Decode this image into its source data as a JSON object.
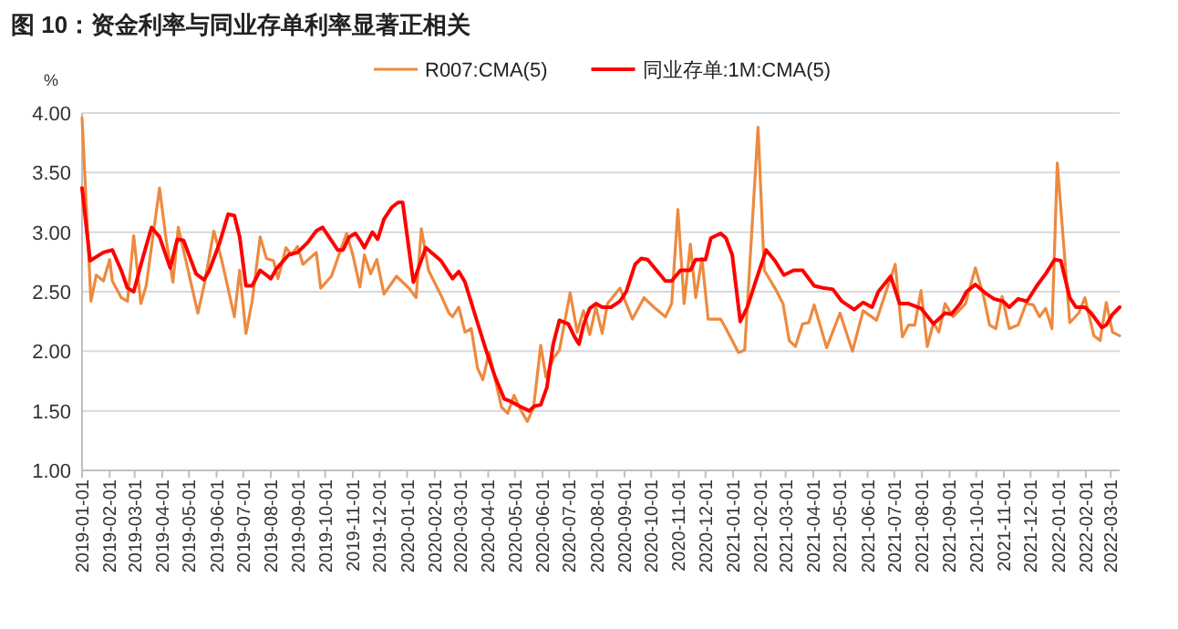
{
  "chart_data": {
    "type": "line",
    "title": "图 10：资金利率与同业存单利率显著正相关",
    "ylabel": "%",
    "xlim": [
      "2019-01-01",
      "2022-03-11"
    ],
    "xticks": [
      "2019-01-01",
      "2019-02-01",
      "2019-03-01",
      "2019-04-01",
      "2019-05-01",
      "2019-06-01",
      "2019-07-01",
      "2019-08-01",
      "2019-09-01",
      "2019-10-01",
      "2019-11-01",
      "2019-12-01",
      "2020-01-01",
      "2020-02-01",
      "2020-03-01",
      "2020-04-01",
      "2020-05-01",
      "2020-06-01",
      "2020-07-01",
      "2020-08-01",
      "2020-09-01",
      "2020-10-01",
      "2020-11-01",
      "2020-12-01",
      "2021-01-01",
      "2021-02-01",
      "2021-03-01",
      "2021-04-01",
      "2021-05-01",
      "2021-06-01",
      "2021-07-01",
      "2021-08-01",
      "2021-09-01",
      "2021-10-01",
      "2021-11-01",
      "2021-12-01",
      "2022-01-01",
      "2022-02-01",
      "2022-03-01"
    ],
    "ylim": [
      1,
      4
    ],
    "yticks": [
      {
        "value": 1,
        "label": "1.00"
      },
      {
        "value": 1.5,
        "label": "1.50"
      },
      {
        "value": 2,
        "label": "2.00"
      },
      {
        "value": 2.5,
        "label": "2.50"
      },
      {
        "value": 3,
        "label": "3.00"
      },
      {
        "value": 3.5,
        "label": "3.50"
      },
      {
        "value": 4,
        "label": "4.00"
      }
    ],
    "grid": "y",
    "legend": "top",
    "series": [
      {
        "name": "R007:CMA(5)",
        "color": "#ed8a3f",
        "x": [
          "2019-01-01",
          "2019-01-11",
          "2019-01-17",
          "2019-01-25",
          "2019-02-01",
          "2019-02-04",
          "2019-02-14",
          "2019-02-21",
          "2019-02-28",
          "2019-03-08",
          "2019-03-14",
          "2019-03-29",
          "2019-04-05",
          "2019-04-13",
          "2019-04-19",
          "2019-04-27",
          "2019-05-11",
          "2019-05-18",
          "2019-05-29",
          "2019-06-07",
          "2019-06-21",
          "2019-06-27",
          "2019-07-04",
          "2019-07-11",
          "2019-07-20",
          "2019-07-27",
          "2019-08-04",
          "2019-08-09",
          "2019-08-18",
          "2019-08-24",
          "2019-08-31",
          "2019-09-06",
          "2019-09-21",
          "2019-09-26",
          "2019-10-08",
          "2019-10-15",
          "2019-10-25",
          "2019-11-01",
          "2019-11-09",
          "2019-11-14",
          "2019-11-21",
          "2019-11-28",
          "2019-12-06",
          "2019-12-20",
          "2020-01-03",
          "2020-01-11",
          "2020-01-17",
          "2020-01-25",
          "2020-02-08",
          "2020-02-17",
          "2020-02-21",
          "2020-02-28",
          "2020-03-06",
          "2020-03-13",
          "2020-03-20",
          "2020-03-26",
          "2020-04-02",
          "2020-04-16",
          "2020-04-23",
          "2020-04-30",
          "2020-05-08",
          "2020-05-15",
          "2020-05-22",
          "2020-05-30",
          "2020-06-05",
          "2020-06-13",
          "2020-06-20",
          "2020-07-02",
          "2020-07-10",
          "2020-07-17",
          "2020-07-24",
          "2020-07-31",
          "2020-08-07",
          "2020-08-13",
          "2020-08-27",
          "2020-09-10",
          "2020-09-23",
          "2020-10-04",
          "2020-10-17",
          "2020-10-24",
          "2020-10-31",
          "2020-11-07",
          "2020-11-14",
          "2020-11-20",
          "2020-11-27",
          "2020-12-04",
          "2020-12-18",
          "2020-12-24",
          "2021-01-07",
          "2021-01-14",
          "2021-01-29",
          "2021-02-05",
          "2021-02-17",
          "2021-02-26",
          "2021-03-05",
          "2021-03-12",
          "2021-03-20",
          "2021-03-27",
          "2021-04-02",
          "2021-04-16",
          "2021-05-01",
          "2021-05-15",
          "2021-05-27",
          "2021-06-11",
          "2021-07-02",
          "2021-07-10",
          "2021-07-17",
          "2021-07-24",
          "2021-07-31",
          "2021-08-07",
          "2021-08-14",
          "2021-08-20",
          "2021-08-27",
          "2021-09-05",
          "2021-09-19",
          "2021-09-30",
          "2021-10-09",
          "2021-10-16",
          "2021-10-23",
          "2021-10-30",
          "2021-11-07",
          "2021-11-17",
          "2021-11-26",
          "2021-12-04",
          "2021-12-11",
          "2021-12-18",
          "2021-12-25",
          "2021-12-31",
          "2022-01-14",
          "2022-01-24",
          "2022-01-31",
          "2022-02-10",
          "2022-02-17",
          "2022-02-24",
          "2022-03-03",
          "2022-03-11"
        ],
        "values": [
          3.96,
          2.42,
          2.64,
          2.59,
          2.77,
          2.59,
          2.45,
          2.42,
          2.97,
          2.4,
          2.55,
          3.37,
          2.96,
          2.58,
          3.04,
          2.78,
          2.32,
          2.55,
          3.01,
          2.76,
          2.29,
          2.68,
          2.15,
          2.42,
          2.96,
          2.78,
          2.76,
          2.61,
          2.87,
          2.81,
          2.88,
          2.73,
          2.83,
          2.53,
          2.63,
          2.78,
          2.99,
          2.81,
          2.54,
          2.81,
          2.65,
          2.77,
          2.48,
          2.63,
          2.53,
          2.45,
          3.03,
          2.68,
          2.47,
          2.32,
          2.29,
          2.37,
          2.16,
          2.19,
          1.86,
          1.76,
          1.99,
          1.53,
          1.48,
          1.63,
          1.5,
          1.41,
          1.53,
          2.05,
          1.78,
          1.94,
          2.01,
          2.49,
          2.16,
          2.34,
          2.14,
          2.37,
          2.15,
          2.4,
          2.53,
          2.27,
          2.45,
          2.37,
          2.29,
          2.4,
          3.19,
          2.4,
          2.9,
          2.45,
          2.78,
          2.27,
          2.27,
          2.19,
          1.99,
          2.01,
          3.88,
          2.68,
          2.53,
          2.4,
          2.09,
          2.04,
          2.23,
          2.24,
          2.39,
          2.03,
          2.32,
          2.0,
          2.34,
          2.26,
          2.73,
          2.12,
          2.22,
          2.22,
          2.51,
          2.04,
          2.24,
          2.16,
          2.4,
          2.29,
          2.4,
          2.7,
          2.47,
          2.22,
          2.19,
          2.46,
          2.19,
          2.22,
          2.4,
          2.39,
          2.29,
          2.36,
          2.19,
          3.58,
          2.24,
          2.32,
          2.45,
          2.13,
          2.09,
          2.41,
          2.16,
          2.13
        ]
      },
      {
        "name": "同业存单:1M:CMA(5)",
        "color": "#ff0000",
        "x": [
          "2019-01-01",
          "2019-01-10",
          "2019-01-25",
          "2019-02-04",
          "2019-02-14",
          "2019-02-21",
          "2019-02-28",
          "2019-03-10",
          "2019-03-20",
          "2019-03-29",
          "2019-04-10",
          "2019-04-18",
          "2019-04-25",
          "2019-05-09",
          "2019-05-18",
          "2019-05-24",
          "2019-06-04",
          "2019-06-14",
          "2019-06-21",
          "2019-06-27",
          "2019-07-04",
          "2019-07-11",
          "2019-07-20",
          "2019-08-01",
          "2019-08-07",
          "2019-08-21",
          "2019-08-31",
          "2019-09-11",
          "2019-09-21",
          "2019-09-28",
          "2019-10-08",
          "2019-10-15",
          "2019-10-21",
          "2019-10-28",
          "2019-11-04",
          "2019-11-11",
          "2019-11-14",
          "2019-11-23",
          "2019-11-29",
          "2019-12-06",
          "2019-12-15",
          "2019-12-22",
          "2019-12-27",
          "2020-01-08",
          "2020-01-22",
          "2020-02-08",
          "2020-02-21",
          "2020-02-28",
          "2020-03-06",
          "2020-03-20",
          "2020-03-30",
          "2020-04-09",
          "2020-04-19",
          "2020-04-26",
          "2020-05-06",
          "2020-05-17",
          "2020-05-23",
          "2020-05-30",
          "2020-06-06",
          "2020-06-13",
          "2020-06-20",
          "2020-06-30",
          "2020-07-07",
          "2020-07-12",
          "2020-07-17",
          "2020-07-24",
          "2020-07-31",
          "2020-08-07",
          "2020-08-17",
          "2020-08-27",
          "2020-09-03",
          "2020-09-13",
          "2020-09-20",
          "2020-09-27",
          "2020-10-07",
          "2020-10-17",
          "2020-10-24",
          "2020-11-03",
          "2020-11-14",
          "2020-11-20",
          "2020-12-01",
          "2020-12-07",
          "2020-12-18",
          "2020-12-24",
          "2020-12-31",
          "2021-01-09",
          "2021-01-17",
          "2021-01-26",
          "2021-02-07",
          "2021-02-17",
          "2021-02-27",
          "2021-03-10",
          "2021-03-20",
          "2021-04-02",
          "2021-04-13",
          "2021-04-23",
          "2021-05-03",
          "2021-05-17",
          "2021-05-27",
          "2021-06-06",
          "2021-06-13",
          "2021-06-27",
          "2021-07-07",
          "2021-07-17",
          "2021-07-31",
          "2021-08-14",
          "2021-08-27",
          "2021-09-03",
          "2021-09-13",
          "2021-09-20",
          "2021-09-30",
          "2021-10-11",
          "2021-10-21",
          "2021-10-31",
          "2021-11-07",
          "2021-11-17",
          "2021-11-27",
          "2021-12-08",
          "2021-12-18",
          "2021-12-28",
          "2022-01-04",
          "2022-01-14",
          "2022-01-21",
          "2022-01-31",
          "2022-02-07",
          "2022-02-19",
          "2022-02-24",
          "2022-03-03",
          "2022-03-11"
        ],
        "values": [
          3.37,
          2.76,
          2.83,
          2.85,
          2.68,
          2.53,
          2.5,
          2.78,
          3.04,
          2.96,
          2.7,
          2.94,
          2.93,
          2.65,
          2.6,
          2.68,
          2.9,
          3.15,
          3.14,
          2.96,
          2.55,
          2.55,
          2.68,
          2.61,
          2.69,
          2.81,
          2.83,
          2.91,
          3.01,
          3.04,
          2.93,
          2.85,
          2.85,
          2.96,
          2.99,
          2.91,
          2.87,
          3.0,
          2.94,
          3.11,
          3.21,
          3.25,
          3.25,
          2.58,
          2.87,
          2.76,
          2.61,
          2.67,
          2.58,
          2.24,
          2.0,
          1.78,
          1.6,
          1.58,
          1.54,
          1.5,
          1.54,
          1.55,
          1.7,
          2.06,
          2.26,
          2.23,
          2.12,
          2.06,
          2.22,
          2.36,
          2.4,
          2.37,
          2.37,
          2.42,
          2.5,
          2.73,
          2.78,
          2.77,
          2.68,
          2.59,
          2.59,
          2.68,
          2.68,
          2.77,
          2.77,
          2.95,
          2.99,
          2.95,
          2.81,
          2.25,
          2.37,
          2.58,
          2.85,
          2.76,
          2.64,
          2.68,
          2.68,
          2.55,
          2.53,
          2.52,
          2.42,
          2.35,
          2.41,
          2.37,
          2.5,
          2.63,
          2.4,
          2.4,
          2.36,
          2.23,
          2.32,
          2.31,
          2.4,
          2.5,
          2.56,
          2.49,
          2.44,
          2.42,
          2.37,
          2.44,
          2.42,
          2.55,
          2.65,
          2.77,
          2.76,
          2.45,
          2.37,
          2.37,
          2.32,
          2.2,
          2.22,
          2.31,
          2.37
        ]
      }
    ]
  }
}
